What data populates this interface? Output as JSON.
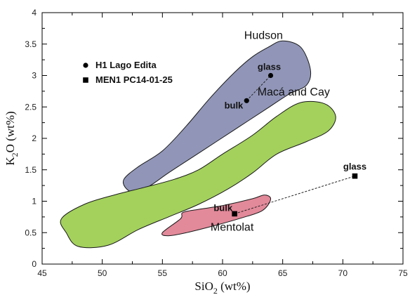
{
  "chart_data": {
    "type": "scatter",
    "title": "",
    "xlabel": {
      "prefix": "SiO",
      "sub": "2",
      "suffix": " (wt%)"
    },
    "ylabel": {
      "prefix": "K",
      "sub": "2",
      "suffix": "O (wt%)"
    },
    "xlim": [
      45,
      75
    ],
    "ylim": [
      0,
      4
    ],
    "xticks": [
      45,
      50,
      55,
      60,
      65,
      70,
      75
    ],
    "yticks": [
      0,
      0.5,
      1,
      1.5,
      2,
      2.5,
      3,
      3.5,
      4
    ],
    "grid": false,
    "legend_position": "top-left",
    "fields": [
      {
        "name": "Hudson",
        "color": "#9196b8",
        "outline": [
          [
            52,
            1.2
          ],
          [
            51.8,
            1.35
          ],
          [
            53,
            1.55
          ],
          [
            55,
            1.8
          ],
          [
            57,
            2.2
          ],
          [
            59,
            2.65
          ],
          [
            61,
            3.05
          ],
          [
            62.5,
            3.3
          ],
          [
            63.8,
            3.45
          ],
          [
            65,
            3.55
          ],
          [
            66.5,
            3.45
          ],
          [
            67.3,
            3.1
          ],
          [
            67,
            2.85
          ],
          [
            65.5,
            2.7
          ],
          [
            63.5,
            2.45
          ],
          [
            61.5,
            2.2
          ],
          [
            59.5,
            1.95
          ],
          [
            57.5,
            1.7
          ],
          [
            55.5,
            1.45
          ],
          [
            54,
            1.25
          ],
          [
            52.8,
            1.14
          ]
        ]
      },
      {
        "name": "Macá and Cay",
        "color": "#a3d15c",
        "outline": [
          [
            47,
            0.5
          ],
          [
            46.6,
            0.72
          ],
          [
            48.5,
            0.95
          ],
          [
            51,
            1.1
          ],
          [
            53.5,
            1.22
          ],
          [
            56,
            1.35
          ],
          [
            58,
            1.5
          ],
          [
            60,
            1.75
          ],
          [
            62.5,
            2.05
          ],
          [
            64.5,
            2.35
          ],
          [
            66.5,
            2.57
          ],
          [
            68.5,
            2.55
          ],
          [
            69.4,
            2.35
          ],
          [
            68.8,
            2.12
          ],
          [
            67,
            1.95
          ],
          [
            64.5,
            1.75
          ],
          [
            62.5,
            1.45
          ],
          [
            60.5,
            1.2
          ],
          [
            58,
            0.95
          ],
          [
            55.5,
            0.75
          ],
          [
            53,
            0.55
          ],
          [
            50.5,
            0.3
          ],
          [
            48,
            0.28
          ]
        ]
      },
      {
        "name": "Mentolat",
        "color": "#e2899a",
        "outline": [
          [
            56.5,
            0.72
          ],
          [
            56.7,
            0.82
          ],
          [
            58,
            0.87
          ],
          [
            60,
            0.93
          ],
          [
            62.5,
            1.04
          ],
          [
            63.5,
            1.1
          ],
          [
            64,
            1.03
          ],
          [
            63.3,
            0.85
          ],
          [
            61.5,
            0.73
          ],
          [
            59.5,
            0.62
          ],
          [
            57,
            0.5
          ],
          [
            55.5,
            0.45
          ],
          [
            55,
            0.5
          ]
        ]
      }
    ],
    "series": [
      {
        "name": "H1 Lago Edita",
        "marker": "circle",
        "points": [
          {
            "label": "bulk",
            "x": 62,
            "y": 2.6
          },
          {
            "label": "glass",
            "x": 64,
            "y": 3.0
          }
        ]
      },
      {
        "name": "MEN1 PC14-01-25",
        "marker": "square",
        "points": [
          {
            "label": "bulk",
            "x": 61,
            "y": 0.8
          },
          {
            "label": "glass",
            "x": 71,
            "y": 1.4
          }
        ]
      }
    ]
  }
}
